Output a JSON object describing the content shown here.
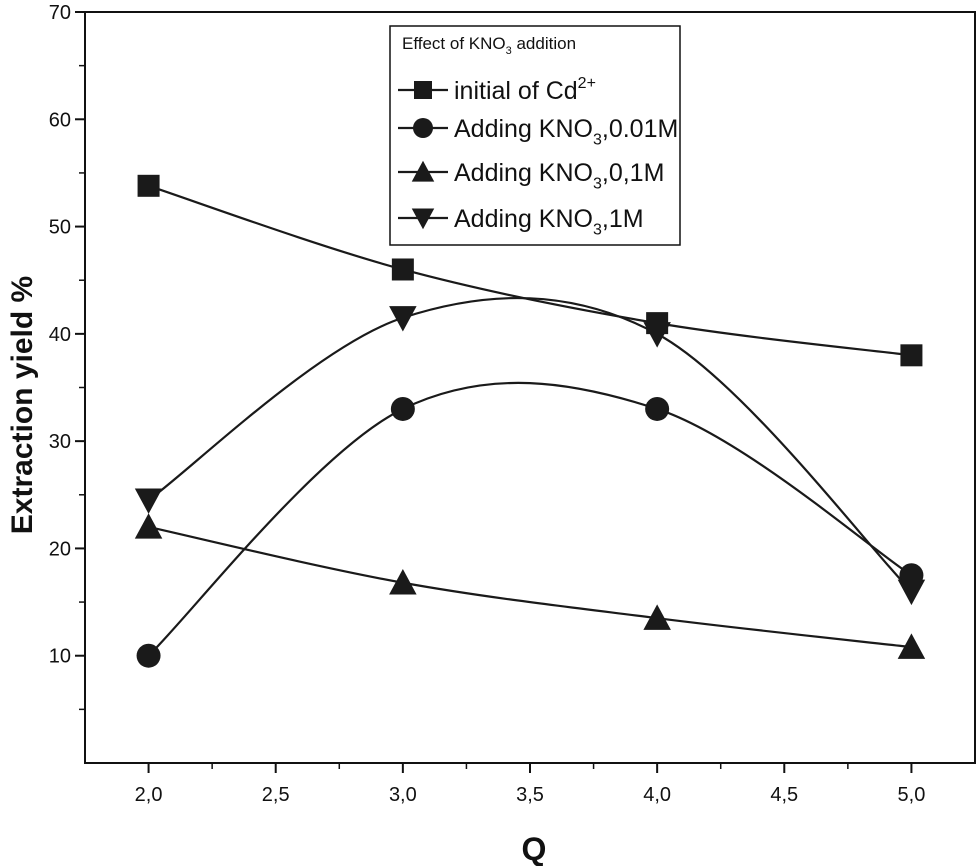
{
  "chart_data": {
    "type": "line",
    "xlabel": "Q",
    "ylabel": "Extraction yield %",
    "xlim": [
      1.75,
      5.25
    ],
    "ylim": [
      0,
      70
    ],
    "x_ticks": [
      "2,0",
      "2,5",
      "3,0",
      "3,5",
      "4,0",
      "4,5",
      "5,0"
    ],
    "y_ticks": [
      "10",
      "20",
      "30",
      "40",
      "50",
      "60",
      "70"
    ],
    "x": [
      2.0,
      3.0,
      4.0,
      5.0
    ],
    "legend": {
      "title_parts": [
        "Effect of KNO",
        "3",
        " addition"
      ],
      "position": "top-center"
    },
    "series": [
      {
        "name": "initial of Cd2+",
        "name_parts": [
          "initial of Cd",
          "2+",
          ""
        ],
        "name_style": "sup",
        "marker": "square",
        "values": [
          53.8,
          46.0,
          41.0,
          38.0
        ]
      },
      {
        "name": "Adding KNO3,0.01M",
        "name_parts": [
          "Adding KNO",
          "3",
          ",0.01M"
        ],
        "name_style": "sub",
        "marker": "circle",
        "values": [
          10.0,
          33.0,
          33.0,
          17.5
        ]
      },
      {
        "name": "Adding KNO3,0,1M",
        "name_parts": [
          "Adding KNO",
          "3",
          ",0,1M"
        ],
        "name_style": "sub",
        "marker": "triangle-up",
        "values": [
          22.0,
          16.8,
          13.5,
          10.8
        ]
      },
      {
        "name": "Adding KNO3,1M",
        "name_parts": [
          "Adding KNO",
          "3",
          ",1M"
        ],
        "name_style": "sub",
        "marker": "triangle-down",
        "values": [
          24.5,
          41.5,
          40.0,
          16.0
        ]
      }
    ],
    "grid": false
  }
}
